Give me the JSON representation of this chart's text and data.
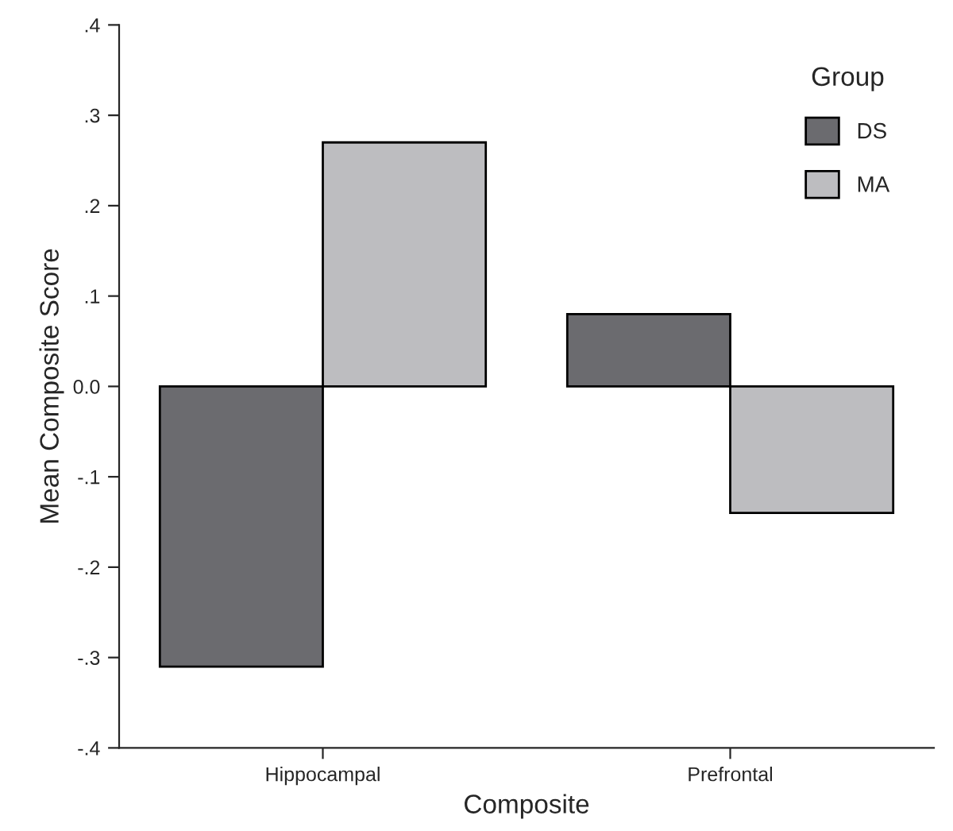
{
  "chart_data": {
    "type": "bar",
    "xlabel": "Composite",
    "ylabel": "Mean Composite Score",
    "legend_title": "Group",
    "categories": [
      "Hippocampal",
      "Prefrontal"
    ],
    "series": [
      {
        "name": "DS",
        "color": "#6b6b6f",
        "values": [
          -0.31,
          0.08
        ]
      },
      {
        "name": "MA",
        "color": "#bdbdc0",
        "values": [
          0.27,
          -0.14
        ]
      }
    ],
    "ylim": [
      -0.4,
      0.4
    ],
    "yticks": [
      {
        "value": -0.4,
        "label": "-.4"
      },
      {
        "value": -0.3,
        "label": "-.3"
      },
      {
        "value": -0.2,
        "label": "-.2"
      },
      {
        "value": -0.1,
        "label": "-.1"
      },
      {
        "value": 0,
        "label": "0.0"
      },
      {
        "value": 0.1,
        "label": ".1"
      },
      {
        "value": 0.2,
        "label": ".2"
      },
      {
        "value": 0.3,
        "label": ".3"
      },
      {
        "value": 0.4,
        "label": ".4"
      }
    ],
    "legend": "top right",
    "grid": false
  }
}
